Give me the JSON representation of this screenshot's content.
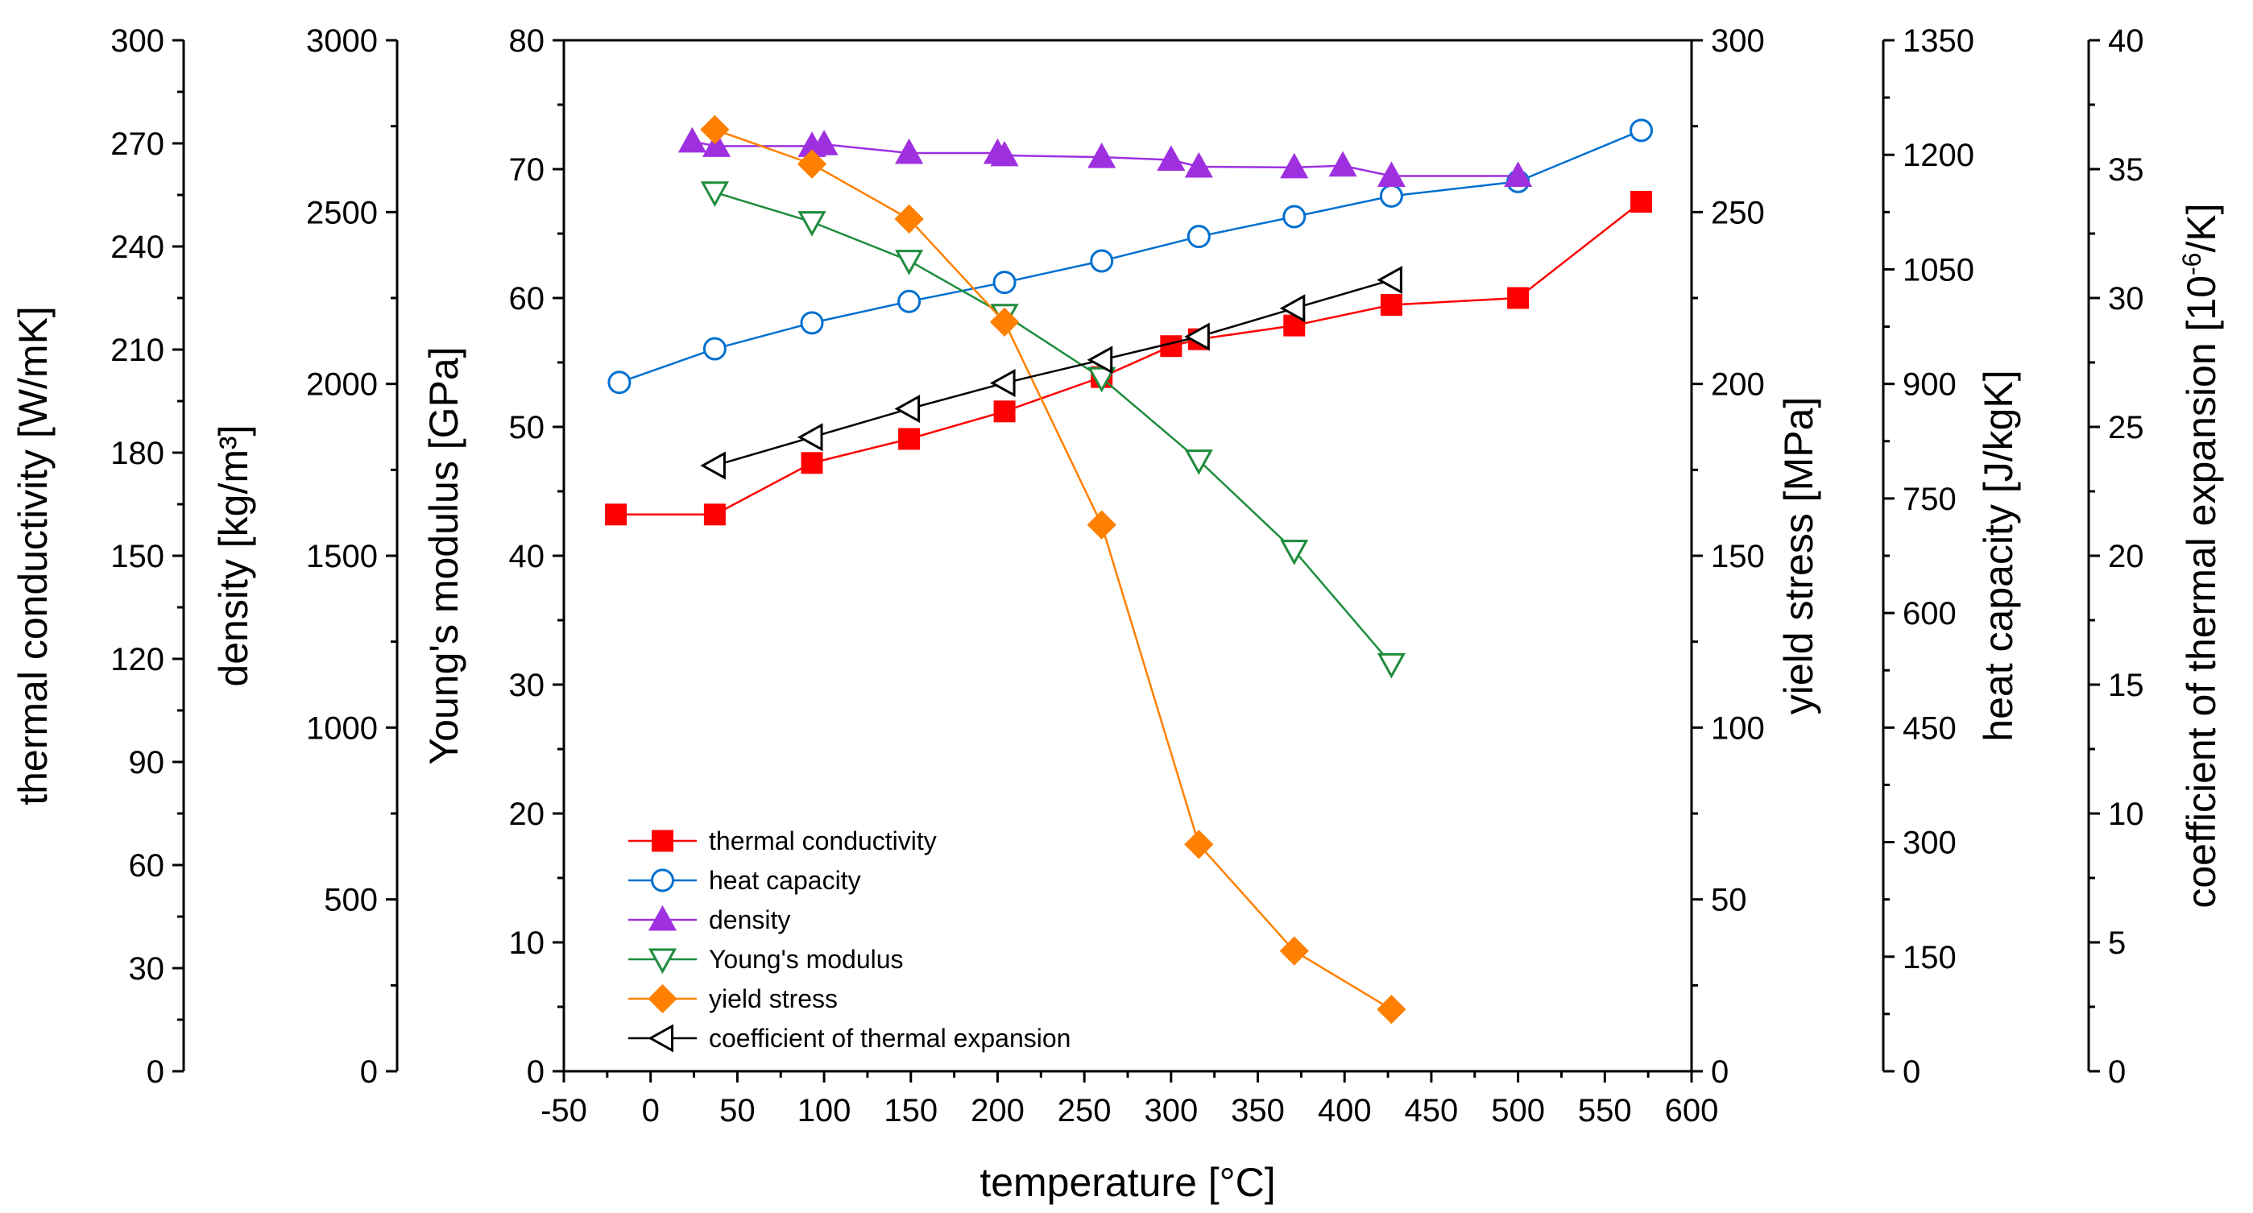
{
  "chart_data": {
    "type": "line",
    "title": "",
    "grid": false,
    "legend_position": "bottom-left",
    "x_axis": {
      "label": "temperature [°C]",
      "range": [
        -50,
        600
      ],
      "ticks": [
        -50,
        0,
        50,
        100,
        150,
        200,
        250,
        300,
        350,
        400,
        450,
        500,
        550,
        600
      ]
    },
    "y_axes": [
      {
        "id": "thermal_conductivity",
        "side": "left",
        "label": "thermal conductivity [W/mK]",
        "range": [
          0,
          300
        ],
        "ticks": [
          0,
          30,
          60,
          90,
          120,
          150,
          180,
          210,
          240,
          270,
          300
        ]
      },
      {
        "id": "density",
        "side": "left",
        "label": "density [kg/m³]",
        "range": [
          0,
          3000
        ],
        "ticks": [
          0,
          500,
          1000,
          1500,
          2000,
          2500,
          3000
        ]
      },
      {
        "id": "youngs_modulus",
        "side": "left",
        "label": "Young's modulus [GPa]",
        "range": [
          0,
          80
        ],
        "ticks": [
          0,
          10,
          20,
          30,
          40,
          50,
          60,
          70,
          80
        ]
      },
      {
        "id": "yield_stress",
        "side": "right",
        "label": "yield stress [MPa]",
        "range": [
          0,
          300
        ],
        "ticks": [
          0,
          50,
          100,
          150,
          200,
          250,
          300
        ]
      },
      {
        "id": "heat_capacity",
        "side": "right",
        "label": "heat capacity [J/kgK]",
        "range": [
          0,
          1350
        ],
        "ticks": [
          0,
          150,
          300,
          450,
          600,
          750,
          900,
          1050,
          1200,
          1350
        ]
      },
      {
        "id": "cte",
        "side": "right",
        "label_main": "coefficient of thermal expansion [10",
        "label_sup": "-6",
        "label_tail": "/K]",
        "range": [
          0,
          40
        ],
        "ticks": [
          0,
          5,
          10,
          15,
          20,
          25,
          30,
          35,
          40
        ]
      }
    ],
    "series": [
      {
        "name": "thermal conductivity",
        "axis": "thermal_conductivity",
        "color": "#ff0000",
        "marker": "square",
        "filled": true,
        "x": [
          -20,
          37,
          93,
          149,
          204,
          260,
          300,
          316,
          371,
          427,
          500,
          571
        ],
        "y": [
          162,
          162,
          177,
          184,
          192,
          202,
          211,
          213,
          217,
          223,
          225,
          253
        ]
      },
      {
        "name": "heat capacity",
        "axis": "heat_capacity",
        "color": "#0070d0",
        "marker": "circle",
        "filled": false,
        "x": [
          -18,
          37,
          93,
          149,
          204,
          260,
          316,
          371,
          427,
          500,
          571
        ],
        "y": [
          902,
          946,
          980,
          1008,
          1033,
          1061,
          1093,
          1119,
          1146,
          1165,
          1232
        ]
      },
      {
        "name": "density",
        "axis": "density",
        "color": "#9f30e0",
        "marker": "triangle-up",
        "filled": true,
        "x": [
          24,
          38,
          93,
          100,
          149,
          200,
          204,
          260,
          300,
          316,
          371,
          399,
          427,
          500
        ],
        "y": [
          2705,
          2692,
          2692,
          2697,
          2672,
          2672,
          2665,
          2660,
          2652,
          2632,
          2630,
          2635,
          2605,
          2605
        ]
      },
      {
        "name": "Young's modulus",
        "axis": "youngs_modulus",
        "color": "#1e8c3c",
        "marker": "triangle-down",
        "filled": false,
        "x": [
          37,
          93,
          149,
          204,
          260,
          316,
          371,
          427
        ],
        "y": [
          68.2,
          65.9,
          62.9,
          58.7,
          53.8,
          47.4,
          40.4,
          31.6
        ]
      },
      {
        "name": "yield stress",
        "axis": "yield_stress",
        "color": "#ff8000",
        "marker": "diamond",
        "filled": true,
        "x": [
          37,
          93,
          149,
          204,
          260,
          316,
          371,
          427
        ],
        "y": [
          274,
          264,
          248,
          218,
          159,
          66,
          35,
          18
        ]
      },
      {
        "name": "coefficient of thermal expansion",
        "axis": "cte",
        "color": "#000000",
        "marker": "triangle-left",
        "filled": false,
        "x": [
          37,
          93,
          149,
          204,
          260,
          316,
          371,
          427
        ],
        "y": [
          23.5,
          24.6,
          25.7,
          26.7,
          27.6,
          28.5,
          29.6,
          30.7
        ]
      }
    ]
  }
}
